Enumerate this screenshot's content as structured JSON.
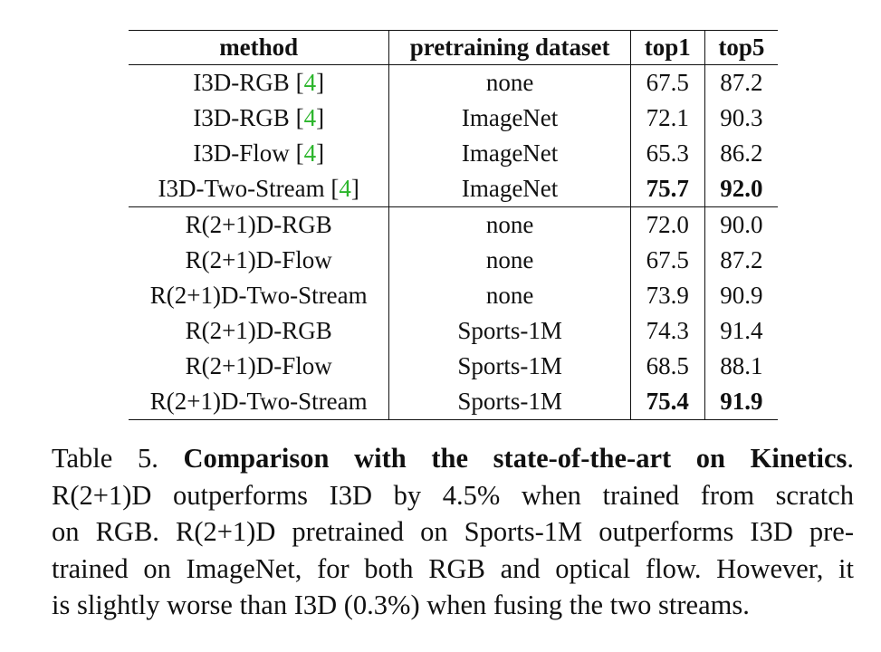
{
  "table": {
    "headers": [
      "method",
      "pretraining dataset",
      "top1",
      "top5"
    ],
    "rows": [
      {
        "method": "I3D-RGB",
        "ref": "4",
        "dataset": "none",
        "top1": "67.5",
        "top5": "87.2",
        "bold": false
      },
      {
        "method": "I3D-RGB",
        "ref": "4",
        "dataset": "ImageNet",
        "top1": "72.1",
        "top5": "90.3",
        "bold": false
      },
      {
        "method": "I3D-Flow",
        "ref": "4",
        "dataset": "ImageNet",
        "top1": "65.3",
        "top5": "86.2",
        "bold": false
      },
      {
        "method": "I3D-Two-Stream",
        "ref": "4",
        "dataset": "ImageNet",
        "top1": "75.7",
        "top5": "92.0",
        "bold": true
      },
      {
        "method": "R(2+1)D-RGB",
        "ref": "",
        "dataset": "none",
        "top1": "72.0",
        "top5": "90.0",
        "bold": false
      },
      {
        "method": "R(2+1)D-Flow",
        "ref": "",
        "dataset": "none",
        "top1": "67.5",
        "top5": "87.2",
        "bold": false
      },
      {
        "method": "R(2+1)D-Two-Stream",
        "ref": "",
        "dataset": "none",
        "top1": "73.9",
        "top5": "90.9",
        "bold": false
      },
      {
        "method": "R(2+1)D-RGB",
        "ref": "",
        "dataset": "Sports-1M",
        "top1": "74.3",
        "top5": "91.4",
        "bold": false
      },
      {
        "method": "R(2+1)D-Flow",
        "ref": "",
        "dataset": "Sports-1M",
        "top1": "68.5",
        "top5": "88.1",
        "bold": false
      },
      {
        "method": "R(2+1)D-Two-Stream",
        "ref": "",
        "dataset": "Sports-1M",
        "top1": "75.4",
        "top5": "91.9",
        "bold": true
      }
    ]
  },
  "caption": {
    "label": "Table 5.",
    "title": "Comparison with the state-of-the-art on Kinetics",
    "title_end": ".",
    "lines": [
      "R(2+1)D outperforms I3D by 4.5% when trained from scratch",
      "on RGB. R(2+1)D pretrained on Sports-1M outperforms I3D pre-",
      "trained on ImageNet, for both RGB and optical flow. However, it",
      "is slightly worse than I3D (0.3%) when fusing the two streams."
    ]
  },
  "colors": {
    "reference_link": "#2bb52b",
    "text": "#111111"
  }
}
